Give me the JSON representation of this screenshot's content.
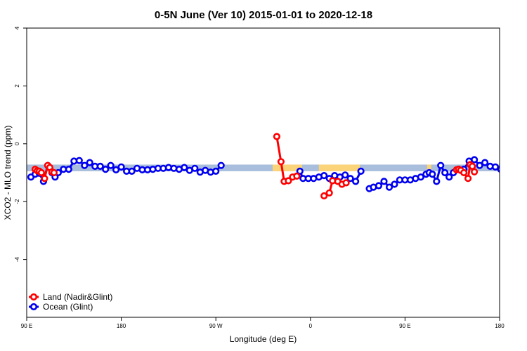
{
  "chart_data": {
    "type": "line",
    "title": "0-5N June (Ver 10)   2015-01-01 to 2020-12-18",
    "xlabel": "Longitude (deg E)",
    "ylabel": "XCO2 - MLO trend (ppm)",
    "xlim": [
      90,
      540
    ],
    "ylim": [
      -6,
      4
    ],
    "x_ticks": [
      {
        "value": 90,
        "label": "90 E"
      },
      {
        "value": 180,
        "label": "180"
      },
      {
        "value": 270,
        "label": "90 W"
      },
      {
        "value": 360,
        "label": "0"
      },
      {
        "value": 450,
        "label": "90 E"
      },
      {
        "value": 540,
        "label": "180"
      }
    ],
    "y_ticks": [
      {
        "value": -4,
        "label": "-4"
      },
      {
        "value": -2,
        "label": "-2"
      },
      {
        "value": 0,
        "label": "0"
      },
      {
        "value": 2,
        "label": "2"
      },
      {
        "value": 4,
        "label": "4"
      }
    ],
    "band": {
      "ymin": -0.95,
      "ymax": -0.72,
      "color": "#a8bedc",
      "land_color": "#fbd47a",
      "land_segments": [
        [
          324,
          352
        ],
        [
          368,
          407
        ],
        [
          471,
          475
        ]
      ]
    },
    "series": [
      {
        "name": "Land (Nadir&Glint)",
        "color": "#ff0000",
        "segments": [
          [
            [
              98,
              -0.88
            ],
            [
              100,
              -0.93
            ],
            [
              102,
              -0.95
            ],
            [
              104,
              -1.0
            ],
            [
              107,
              -1.2
            ],
            [
              110,
              -0.75
            ],
            [
              112,
              -0.82
            ],
            [
              114,
              -0.97
            ],
            [
              116,
              -1.0
            ]
          ],
          [
            [
              328,
              0.25
            ],
            [
              332,
              -0.62
            ],
            [
              335,
              -1.3
            ],
            [
              339,
              -1.28
            ],
            [
              343,
              -1.15
            ],
            [
              347,
              -1.12
            ]
          ],
          [
            [
              373,
              -1.8
            ],
            [
              378,
              -1.7
            ],
            [
              381,
              -1.28
            ],
            [
              386,
              -1.3
            ],
            [
              390,
              -1.4
            ],
            [
              394,
              -1.35
            ]
          ],
          [
            [
              499,
              -0.9
            ],
            [
              501,
              -0.88
            ],
            [
              503,
              -0.92
            ],
            [
              506,
              -1.0
            ],
            [
              510,
              -1.2
            ],
            [
              512,
              -0.72
            ],
            [
              514,
              -0.78
            ],
            [
              516,
              -0.97
            ]
          ]
        ]
      },
      {
        "name": "Ocean (Glint)",
        "color": "#0000ee",
        "segments": [
          [
            [
              94,
              -1.15
            ],
            [
              98,
              -1.05
            ],
            [
              102,
              -1.02
            ],
            [
              106,
              -1.3
            ],
            [
              110,
              -0.75
            ],
            [
              114,
              -1.0
            ],
            [
              117,
              -1.15
            ],
            [
              120,
              -1.0
            ],
            [
              125,
              -0.88
            ],
            [
              130,
              -0.88
            ],
            [
              135,
              -0.6
            ],
            [
              140,
              -0.58
            ],
            [
              145,
              -0.75
            ],
            [
              150,
              -0.65
            ],
            [
              155,
              -0.78
            ],
            [
              160,
              -0.78
            ],
            [
              165,
              -0.88
            ],
            [
              170,
              -0.75
            ],
            [
              175,
              -0.9
            ],
            [
              180,
              -0.8
            ],
            [
              185,
              -0.95
            ],
            [
              190,
              -0.95
            ],
            [
              195,
              -0.85
            ],
            [
              200,
              -0.9
            ],
            [
              205,
              -0.9
            ],
            [
              210,
              -0.88
            ],
            [
              215,
              -0.85
            ],
            [
              220,
              -0.85
            ],
            [
              225,
              -0.82
            ],
            [
              230,
              -0.85
            ],
            [
              235,
              -0.88
            ],
            [
              240,
              -0.82
            ],
            [
              245,
              -0.92
            ],
            [
              250,
              -0.85
            ],
            [
              255,
              -0.98
            ],
            [
              260,
              -0.92
            ],
            [
              265,
              -0.98
            ],
            [
              270,
              -0.95
            ],
            [
              275,
              -0.75
            ]
          ],
          [
            [
              350,
              -0.95
            ],
            [
              353,
              -1.2
            ],
            [
              358,
              -1.2
            ],
            [
              363,
              -1.2
            ],
            [
              368,
              -1.15
            ],
            [
              373,
              -1.1
            ],
            [
              378,
              -1.2
            ],
            [
              383,
              -1.1
            ],
            [
              388,
              -1.15
            ],
            [
              393,
              -1.08
            ],
            [
              398,
              -1.2
            ],
            [
              403,
              -1.3
            ],
            [
              408,
              -0.95
            ]
          ],
          [
            [
              416,
              -1.55
            ],
            [
              420,
              -1.5
            ],
            [
              425,
              -1.45
            ],
            [
              430,
              -1.3
            ],
            [
              435,
              -1.5
            ],
            [
              440,
              -1.4
            ],
            [
              445,
              -1.25
            ],
            [
              450,
              -1.25
            ],
            [
              455,
              -1.25
            ],
            [
              460,
              -1.2
            ],
            [
              465,
              -1.15
            ],
            [
              470,
              -1.05
            ],
            [
              473,
              -1.0
            ],
            [
              476,
              -1.05
            ],
            [
              480,
              -1.3
            ],
            [
              484,
              -0.75
            ],
            [
              488,
              -1.0
            ],
            [
              492,
              -1.15
            ],
            [
              496,
              -1.0
            ],
            [
              501,
              -0.88
            ],
            [
              506,
              -0.88
            ],
            [
              511,
              -0.6
            ],
            [
              516,
              -0.55
            ],
            [
              521,
              -0.75
            ],
            [
              526,
              -0.65
            ],
            [
              531,
              -0.78
            ],
            [
              536,
              -0.8
            ],
            [
              541,
              -0.88
            ],
            [
              546,
              -0.75
            ]
          ]
        ]
      }
    ],
    "legend": {
      "position": "bottom-left"
    }
  }
}
